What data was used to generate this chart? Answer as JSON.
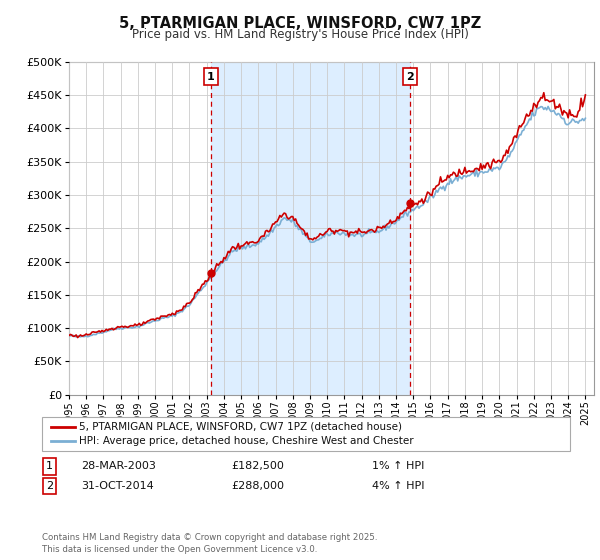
{
  "title": "5, PTARMIGAN PLACE, WINSFORD, CW7 1PZ",
  "subtitle": "Price paid vs. HM Land Registry's House Price Index (HPI)",
  "ytick_values": [
    0,
    50000,
    100000,
    150000,
    200000,
    250000,
    300000,
    350000,
    400000,
    450000,
    500000
  ],
  "ylim": [
    0,
    500000
  ],
  "xlim": [
    1995.0,
    2025.5
  ],
  "background_color": "#ffffff",
  "plot_bg_color": "#ffffff",
  "grid_color": "#cccccc",
  "hpi_line_color": "#7bafd4",
  "price_line_color": "#cc0000",
  "dashed_line_color": "#cc0000",
  "shade_color": "#ddeeff",
  "transaction1": {
    "date_num": 2003.23,
    "price": 182500,
    "label": "1",
    "date_str": "28-MAR-2003",
    "pct": "1%",
    "dir": "↑"
  },
  "transaction2": {
    "date_num": 2014.83,
    "price": 288000,
    "label": "2",
    "date_str": "31-OCT-2014",
    "pct": "4%",
    "dir": "↑"
  },
  "legend_entry1": "5, PTARMIGAN PLACE, WINSFORD, CW7 1PZ (detached house)",
  "legend_entry2": "HPI: Average price, detached house, Cheshire West and Chester",
  "footer": "Contains HM Land Registry data © Crown copyright and database right 2025.\nThis data is licensed under the Open Government Licence v3.0.",
  "xtick_years": [
    "1995",
    "1996",
    "1997",
    "1998",
    "1999",
    "2000",
    "2001",
    "2002",
    "2003",
    "2004",
    "2005",
    "2006",
    "2007",
    "2008",
    "2009",
    "2010",
    "2011",
    "2012",
    "2013",
    "2014",
    "2015",
    "2016",
    "2017",
    "2018",
    "2019",
    "2020",
    "2021",
    "2022",
    "2023",
    "2024",
    "2025"
  ]
}
